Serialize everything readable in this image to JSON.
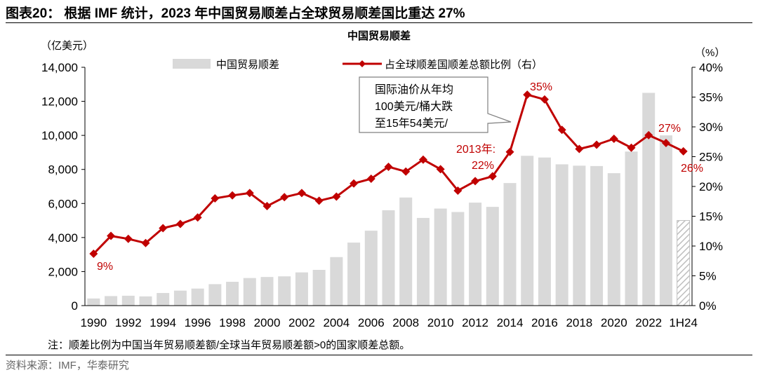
{
  "figure_title": "图表20： 根据 IMF 统计，2023 年中国贸易顺差占全球贸易顺差国比重达 27%",
  "note": "注：顺差比例为中国当年贸易顺差额/全球当年贸易顺差额>0的国家顺差总额。",
  "source": "资料来源：IMF，华泰研究",
  "colors": {
    "bar": "#d9d9d9",
    "line": "#c00000",
    "axis": "#000000",
    "callout_border": "#808080"
  },
  "chart_data": {
    "type": "bar+line",
    "title": "中国贸易顺差",
    "left_axis_label": "（亿美元）",
    "right_axis_label": "（%）",
    "left_ylim": [
      0,
      14000
    ],
    "left_ticks": [
      "0",
      "2,000",
      "4,000",
      "6,000",
      "8,000",
      "10,000",
      "12,000",
      "14,000"
    ],
    "right_ylim": [
      0,
      40
    ],
    "right_ticks": [
      "0%",
      "5%",
      "10%",
      "15%",
      "20%",
      "25%",
      "30%",
      "35%",
      "40%"
    ],
    "x_tick_labels": [
      "1990",
      "1992",
      "1994",
      "1996",
      "1998",
      "2000",
      "2002",
      "2004",
      "2006",
      "2008",
      "2010",
      "2012",
      "2014",
      "2016",
      "2018",
      "2020",
      "2022",
      "1H24"
    ],
    "categories": [
      "1990",
      "1991",
      "1992",
      "1993",
      "1994",
      "1995",
      "1996",
      "1997",
      "1998",
      "1999",
      "2000",
      "2001",
      "2002",
      "2003",
      "2004",
      "2005",
      "2006",
      "2007",
      "2008",
      "2009",
      "2010",
      "2011",
      "2012",
      "2013",
      "2014",
      "2015",
      "2016",
      "2017",
      "2018",
      "2019",
      "2020",
      "2021",
      "2022",
      "2023",
      "1H24"
    ],
    "legend": {
      "bar": "中国贸易顺差",
      "line": "占全球顺差国顺差总额比例（右）"
    },
    "series": [
      {
        "name": "中国贸易顺差",
        "axis": "left",
        "type": "bar",
        "values": [
          420,
          560,
          580,
          540,
          740,
          880,
          1000,
          1260,
          1400,
          1620,
          1680,
          1720,
          1950,
          2100,
          2850,
          3700,
          4400,
          5600,
          6350,
          5150,
          5700,
          5500,
          6050,
          5800,
          7200,
          8800,
          8700,
          8300,
          8220,
          8200,
          7780,
          9050,
          12500,
          10000,
          5000
        ],
        "hatched_last": true
      },
      {
        "name": "占全球顺差国顺差总额比例（右）",
        "axis": "right",
        "type": "line",
        "values": [
          8.7,
          11.7,
          11.2,
          10.5,
          13.0,
          13.7,
          14.8,
          18.0,
          18.5,
          18.9,
          16.7,
          18.2,
          18.9,
          17.6,
          18.3,
          20.5,
          21.3,
          23.3,
          22.5,
          24.5,
          22.9,
          19.3,
          20.9,
          21.7,
          25.8,
          35.4,
          34.6,
          29.5,
          26.3,
          27.0,
          28.0,
          26.5,
          28.6,
          27.3,
          25.9
        ]
      }
    ],
    "data_labels": [
      {
        "text": "9%",
        "index": 0
      },
      {
        "text": "2013年:",
        "index": 23
      },
      {
        "text": "22%",
        "index": 23
      },
      {
        "text": "35%",
        "index": 25
      },
      {
        "text": "27%",
        "index": 33
      },
      {
        "text": "26%",
        "index": 34
      }
    ],
    "annotation": {
      "lines": [
        "国际油价从年均",
        "100美元/桶大跌",
        "至15年54美元/"
      ]
    }
  }
}
